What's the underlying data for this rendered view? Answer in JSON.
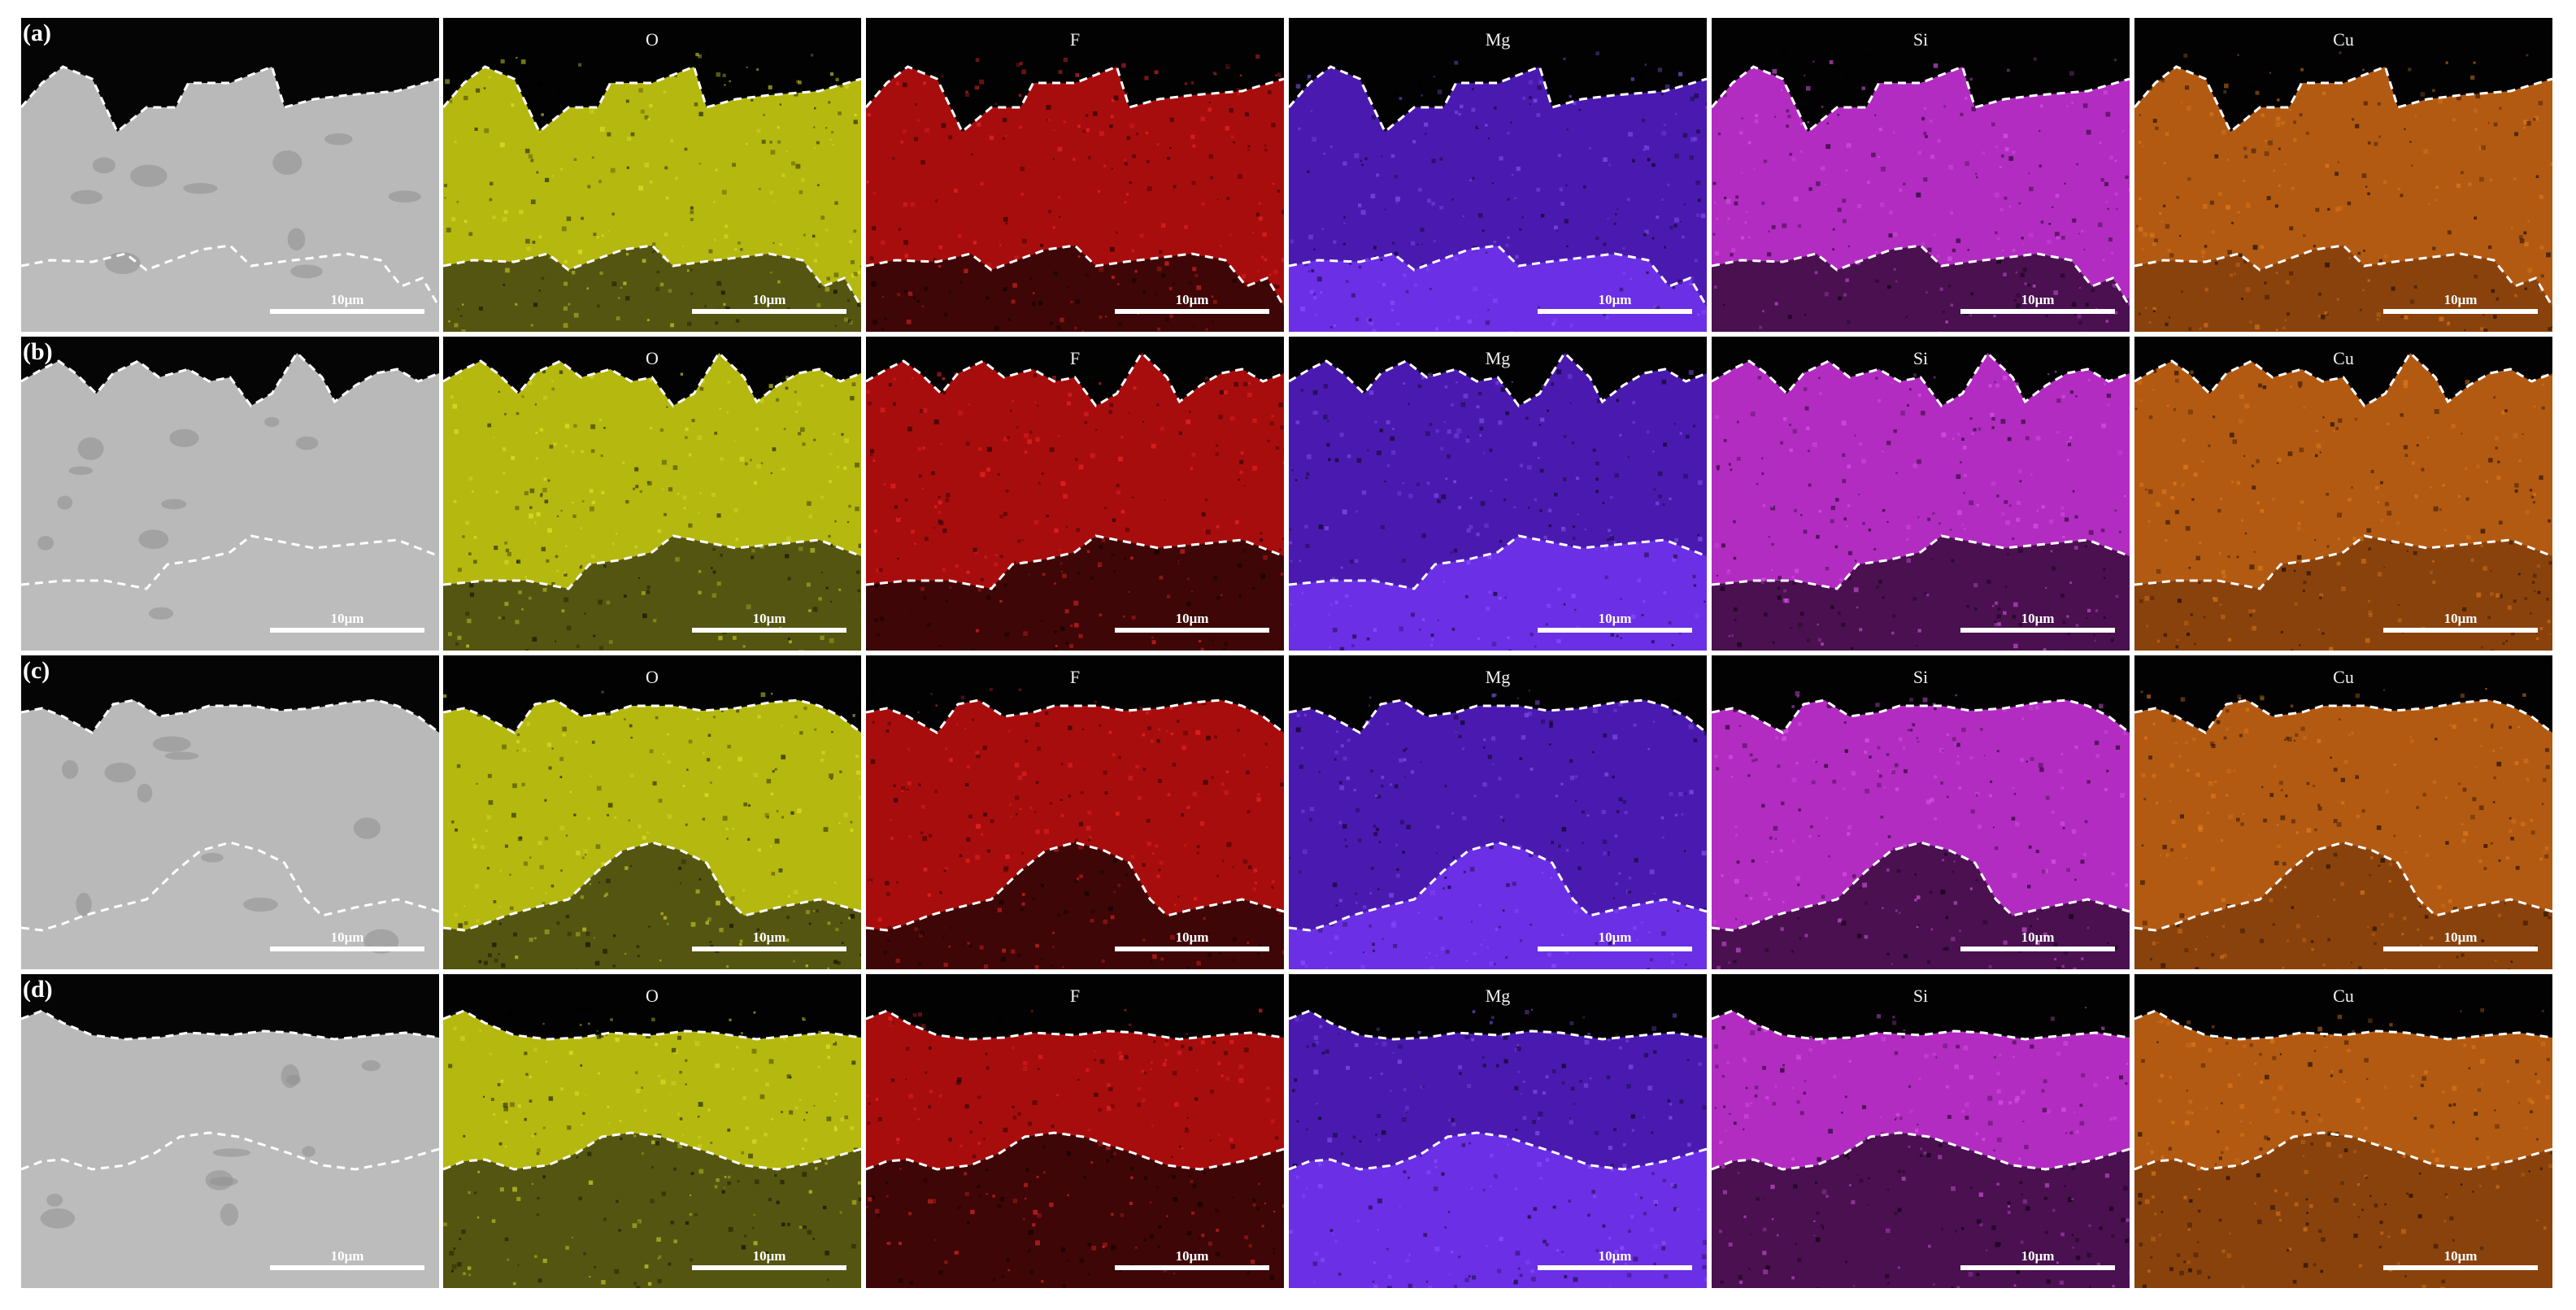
{
  "figure": {
    "rows": [
      {
        "label": "(a)"
      },
      {
        "label": "(b)"
      },
      {
        "label": "(c)"
      },
      {
        "label": "(d)"
      }
    ],
    "columns": [
      {
        "label": "",
        "map": "SEM",
        "color": "#b9b9b9",
        "bottom_color": "#bcbcbc",
        "dot_color": "#d8d8d8"
      },
      {
        "label": "O",
        "map": "O",
        "color": "#b5b80f",
        "bottom_color": "#545510",
        "dot_color": "#e8ea30"
      },
      {
        "label": "F",
        "map": "F",
        "color": "#a80d0d",
        "bottom_color": "#3e0606",
        "dot_color": "#ff2a2a"
      },
      {
        "label": "Mg",
        "map": "Mg",
        "color": "#4a1ab0",
        "bottom_color": "#6b2fe6",
        "dot_color": "#8f5cff"
      },
      {
        "label": "Si",
        "map": "Si",
        "color": "#b22cc2",
        "bottom_color": "#4a1050",
        "dot_color": "#e25cf0"
      },
      {
        "label": "Cu",
        "map": "Cu",
        "color": "#b35a12",
        "bottom_color": "#8a420c",
        "dot_color": "#e8801e"
      }
    ],
    "scale_bar_text": "10μm",
    "row_scale_texts": [
      [
        "10μm",
        "10μm",
        "10μm",
        "10μm",
        "10μm",
        "10μm"
      ],
      [
        "10μm",
        "10μm",
        "10μm",
        "10μm",
        "10μm",
        "10μm"
      ],
      [
        "10μm",
        "10μm",
        "10μm",
        "10μm",
        "10μm",
        "10μm"
      ],
      [
        "10μm",
        "10μm",
        "10μm",
        "10μm",
        "10μm",
        "10μm"
      ]
    ]
  }
}
